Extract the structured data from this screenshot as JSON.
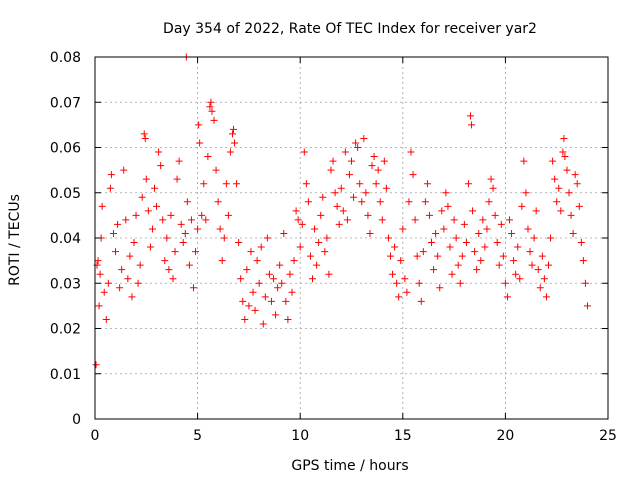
{
  "chart_data": {
    "type": "scatter",
    "title": "Day 354 of 2022, Rate Of TEC Index for receiver yar2",
    "xlabel": "GPS time / hours",
    "ylabel": "ROTI / TECUs",
    "xlim": [
      0,
      25
    ],
    "ylim": [
      0,
      0.08
    ],
    "xticks": [
      0,
      5,
      10,
      15,
      20,
      25
    ],
    "xtick_labels": [
      "0",
      "5",
      "10",
      "15",
      "20",
      "25"
    ],
    "yticks": [
      0,
      0.01,
      0.02,
      0.03,
      0.04,
      0.05,
      0.06,
      0.07,
      0.08
    ],
    "ytick_labels": [
      "0",
      "0.01",
      "0.02",
      "0.03",
      "0.04",
      "0.05",
      "0.06",
      "0.07",
      "0.08"
    ],
    "grid": true,
    "marker": "plus",
    "series": [
      {
        "color": "#ff0000",
        "points": [
          [
            0.05,
            0.012
          ],
          [
            0.1,
            0.034
          ],
          [
            0.15,
            0.035
          ],
          [
            0.2,
            0.025
          ],
          [
            0.25,
            0.032
          ],
          [
            0.3,
            0.04
          ],
          [
            0.35,
            0.047
          ],
          [
            0.45,
            0.028
          ],
          [
            0.55,
            0.022
          ],
          [
            0.65,
            0.03
          ],
          [
            0.75,
            0.051
          ],
          [
            0.8,
            0.054
          ],
          [
            0.9,
            0.041
          ],
          [
            1.0,
            0.037
          ],
          [
            1.1,
            0.043
          ],
          [
            1.2,
            0.029
          ],
          [
            1.3,
            0.033
          ],
          [
            1.4,
            0.055
          ],
          [
            1.5,
            0.044
          ],
          [
            1.6,
            0.031
          ],
          [
            1.7,
            0.036
          ],
          [
            1.8,
            0.027
          ],
          [
            1.9,
            0.039
          ],
          [
            2.0,
            0.045
          ],
          [
            2.1,
            0.03
          ],
          [
            2.2,
            0.034
          ],
          [
            2.3,
            0.049
          ],
          [
            2.4,
            0.063
          ],
          [
            2.45,
            0.062
          ],
          [
            2.5,
            0.053
          ],
          [
            2.6,
            0.046
          ],
          [
            2.7,
            0.038
          ],
          [
            2.8,
            0.042
          ],
          [
            2.9,
            0.051
          ],
          [
            3.0,
            0.047
          ],
          [
            3.1,
            0.059
          ],
          [
            3.2,
            0.056
          ],
          [
            3.3,
            0.044
          ],
          [
            3.4,
            0.035
          ],
          [
            3.5,
            0.04
          ],
          [
            3.6,
            0.033
          ],
          [
            3.7,
            0.045
          ],
          [
            3.8,
            0.031
          ],
          [
            3.9,
            0.037
          ],
          [
            4.0,
            0.053
          ],
          [
            4.1,
            0.057
          ],
          [
            4.2,
            0.043
          ],
          [
            4.3,
            0.039
          ],
          [
            4.4,
            0.041
          ],
          [
            4.45,
            0.08
          ],
          [
            4.5,
            0.048
          ],
          [
            4.6,
            0.034
          ],
          [
            4.7,
            0.044
          ],
          [
            4.8,
            0.029
          ],
          [
            4.9,
            0.037
          ],
          [
            5.0,
            0.042
          ],
          [
            5.05,
            0.065
          ],
          [
            5.1,
            0.061
          ],
          [
            5.2,
            0.045
          ],
          [
            5.3,
            0.052
          ],
          [
            5.4,
            0.044
          ],
          [
            5.5,
            0.058
          ],
          [
            5.6,
            0.069
          ],
          [
            5.65,
            0.07
          ],
          [
            5.7,
            0.068
          ],
          [
            5.8,
            0.066
          ],
          [
            5.9,
            0.055
          ],
          [
            6.0,
            0.048
          ],
          [
            6.1,
            0.042
          ],
          [
            6.2,
            0.035
          ],
          [
            6.3,
            0.04
          ],
          [
            6.4,
            0.052
          ],
          [
            6.5,
            0.045
          ],
          [
            6.6,
            0.059
          ],
          [
            6.7,
            0.063
          ],
          [
            6.75,
            0.064
          ],
          [
            6.8,
            0.061
          ],
          [
            6.9,
            0.052
          ],
          [
            7.0,
            0.039
          ],
          [
            7.1,
            0.031
          ],
          [
            7.2,
            0.026
          ],
          [
            7.3,
            0.022
          ],
          [
            7.4,
            0.033
          ],
          [
            7.5,
            0.025
          ],
          [
            7.6,
            0.037
          ],
          [
            7.7,
            0.028
          ],
          [
            7.8,
            0.024
          ],
          [
            7.9,
            0.035
          ],
          [
            8.0,
            0.03
          ],
          [
            8.1,
            0.038
          ],
          [
            8.2,
            0.021
          ],
          [
            8.3,
            0.027
          ],
          [
            8.4,
            0.04
          ],
          [
            8.5,
            0.032
          ],
          [
            8.6,
            0.026
          ],
          [
            8.7,
            0.031
          ],
          [
            8.8,
            0.023
          ],
          [
            8.9,
            0.029
          ],
          [
            9.0,
            0.034
          ],
          [
            9.1,
            0.03
          ],
          [
            9.2,
            0.041
          ],
          [
            9.3,
            0.026
          ],
          [
            9.4,
            0.022
          ],
          [
            9.5,
            0.032
          ],
          [
            9.6,
            0.028
          ],
          [
            9.7,
            0.035
          ],
          [
            9.8,
            0.046
          ],
          [
            9.9,
            0.044
          ],
          [
            10.0,
            0.038
          ],
          [
            10.1,
            0.043
          ],
          [
            10.2,
            0.059
          ],
          [
            10.3,
            0.052
          ],
          [
            10.4,
            0.048
          ],
          [
            10.5,
            0.036
          ],
          [
            10.6,
            0.031
          ],
          [
            10.7,
            0.042
          ],
          [
            10.8,
            0.034
          ],
          [
            10.9,
            0.039
          ],
          [
            11.0,
            0.045
          ],
          [
            11.1,
            0.049
          ],
          [
            11.2,
            0.037
          ],
          [
            11.3,
            0.04
          ],
          [
            11.4,
            0.032
          ],
          [
            11.5,
            0.055
          ],
          [
            11.6,
            0.057
          ],
          [
            11.7,
            0.05
          ],
          [
            11.8,
            0.047
          ],
          [
            11.9,
            0.043
          ],
          [
            12.0,
            0.051
          ],
          [
            12.1,
            0.046
          ],
          [
            12.2,
            0.059
          ],
          [
            12.3,
            0.044
          ],
          [
            12.4,
            0.054
          ],
          [
            12.5,
            0.057
          ],
          [
            12.6,
            0.049
          ],
          [
            12.7,
            0.061
          ],
          [
            12.8,
            0.06
          ],
          [
            12.9,
            0.052
          ],
          [
            13.0,
            0.048
          ],
          [
            13.1,
            0.062
          ],
          [
            13.2,
            0.05
          ],
          [
            13.3,
            0.045
          ],
          [
            13.4,
            0.041
          ],
          [
            13.5,
            0.056
          ],
          [
            13.6,
            0.058
          ],
          [
            13.7,
            0.052
          ],
          [
            13.8,
            0.055
          ],
          [
            13.9,
            0.048
          ],
          [
            14.0,
            0.044
          ],
          [
            14.1,
            0.057
          ],
          [
            14.2,
            0.051
          ],
          [
            14.3,
            0.04
          ],
          [
            14.4,
            0.036
          ],
          [
            14.5,
            0.032
          ],
          [
            14.6,
            0.038
          ],
          [
            14.7,
            0.03
          ],
          [
            14.8,
            0.027
          ],
          [
            14.9,
            0.035
          ],
          [
            15.0,
            0.042
          ],
          [
            15.1,
            0.031
          ],
          [
            15.2,
            0.028
          ],
          [
            15.3,
            0.048
          ],
          [
            15.4,
            0.059
          ],
          [
            15.5,
            0.054
          ],
          [
            15.6,
            0.044
          ],
          [
            15.7,
            0.036
          ],
          [
            15.8,
            0.03
          ],
          [
            15.9,
            0.026
          ],
          [
            16.0,
            0.037
          ],
          [
            16.1,
            0.048
          ],
          [
            16.2,
            0.052
          ],
          [
            16.3,
            0.045
          ],
          [
            16.4,
            0.039
          ],
          [
            16.5,
            0.033
          ],
          [
            16.6,
            0.041
          ],
          [
            16.7,
            0.036
          ],
          [
            16.8,
            0.029
          ],
          [
            16.9,
            0.046
          ],
          [
            17.0,
            0.042
          ],
          [
            17.1,
            0.05
          ],
          [
            17.2,
            0.047
          ],
          [
            17.3,
            0.038
          ],
          [
            17.4,
            0.032
          ],
          [
            17.5,
            0.044
          ],
          [
            17.6,
            0.04
          ],
          [
            17.7,
            0.034
          ],
          [
            17.8,
            0.03
          ],
          [
            17.9,
            0.036
          ],
          [
            18.0,
            0.043
          ],
          [
            18.1,
            0.039
          ],
          [
            18.2,
            0.052
          ],
          [
            18.3,
            0.067
          ],
          [
            18.35,
            0.065
          ],
          [
            18.4,
            0.046
          ],
          [
            18.5,
            0.037
          ],
          [
            18.6,
            0.033
          ],
          [
            18.7,
            0.041
          ],
          [
            18.8,
            0.035
          ],
          [
            18.9,
            0.044
          ],
          [
            19.0,
            0.038
          ],
          [
            19.1,
            0.042
          ],
          [
            19.2,
            0.048
          ],
          [
            19.3,
            0.053
          ],
          [
            19.4,
            0.051
          ],
          [
            19.5,
            0.045
          ],
          [
            19.6,
            0.039
          ],
          [
            19.7,
            0.034
          ],
          [
            19.8,
            0.043
          ],
          [
            19.9,
            0.036
          ],
          [
            20.0,
            0.03
          ],
          [
            20.1,
            0.027
          ],
          [
            20.2,
            0.044
          ],
          [
            20.3,
            0.041
          ],
          [
            20.4,
            0.035
          ],
          [
            20.5,
            0.032
          ],
          [
            20.6,
            0.038
          ],
          [
            20.7,
            0.031
          ],
          [
            20.8,
            0.047
          ],
          [
            20.9,
            0.057
          ],
          [
            21.0,
            0.05
          ],
          [
            21.1,
            0.042
          ],
          [
            21.2,
            0.037
          ],
          [
            21.3,
            0.034
          ],
          [
            21.4,
            0.04
          ],
          [
            21.5,
            0.046
          ],
          [
            21.6,
            0.033
          ],
          [
            21.7,
            0.029
          ],
          [
            21.8,
            0.036
          ],
          [
            21.9,
            0.031
          ],
          [
            22.0,
            0.027
          ],
          [
            22.1,
            0.034
          ],
          [
            22.2,
            0.04
          ],
          [
            22.3,
            0.057
          ],
          [
            22.4,
            0.053
          ],
          [
            22.5,
            0.048
          ],
          [
            22.6,
            0.051
          ],
          [
            22.7,
            0.046
          ],
          [
            22.8,
            0.059
          ],
          [
            22.85,
            0.062
          ],
          [
            22.9,
            0.058
          ],
          [
            23.0,
            0.055
          ],
          [
            23.1,
            0.05
          ],
          [
            23.2,
            0.045
          ],
          [
            23.3,
            0.041
          ],
          [
            23.4,
            0.054
          ],
          [
            23.5,
            0.052
          ],
          [
            23.6,
            0.047
          ],
          [
            23.7,
            0.039
          ],
          [
            23.8,
            0.035
          ],
          [
            23.9,
            0.03
          ],
          [
            24.0,
            0.025
          ]
        ]
      }
    ]
  }
}
